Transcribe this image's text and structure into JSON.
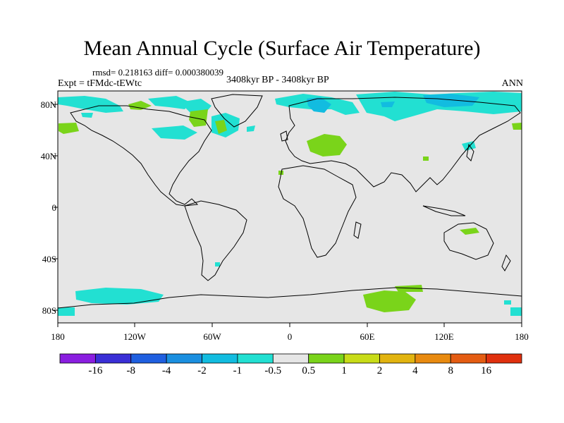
{
  "title": "Mean Annual Cycle (Surface Air Temperature)",
  "stats_text": "rmsd= 0.218163 diff= 0.000380039",
  "experiment_text": "Expt = tFMdc-tEWtc",
  "period_text": "3408kyr BP - 3408kyr BP",
  "season": "ANN",
  "lat_labels": [
    "80N",
    "40N",
    "0",
    "40S",
    "80S"
  ],
  "lon_labels": [
    "180",
    "120W",
    "60W",
    "0",
    "60E",
    "120E",
    "180"
  ],
  "colorbar": {
    "labels": [
      "-16",
      "-8",
      "-4",
      "-2",
      "-1",
      "-0.5",
      "0.5",
      "1",
      "2",
      "4",
      "8",
      "16"
    ],
    "colors": [
      "#8a1ee0",
      "#3a2fd6",
      "#1f5fe0",
      "#1a8fe0",
      "#12bce0",
      "#22e0d2",
      "#e6e6e6",
      "#7ad41a",
      "#c8dc18",
      "#e2b410",
      "#e88a10",
      "#e45c12",
      "#e0300e"
    ]
  },
  "colors": {
    "land_background": "#e6e6e6",
    "cooling_light": "#22e0d2",
    "cooling_mid": "#12bce0",
    "cooling_strong": "#1a8fe0",
    "warming_light": "#7ad41a"
  }
}
